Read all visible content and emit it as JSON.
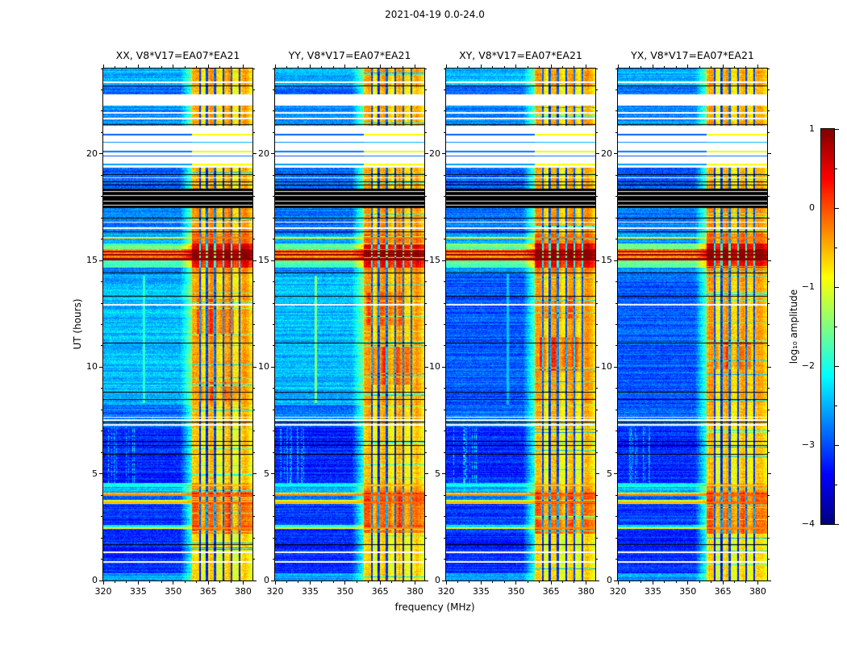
{
  "figure": {
    "title": "2021-04-19 0.0-24.0",
    "xlabel": "frequency (MHz)",
    "ylabel": "UT (hours)"
  },
  "chart_data": {
    "type": "heatmap",
    "title": "2021-04-19 0.0-24.0",
    "xlabel": "frequency (MHz)",
    "ylabel": "UT (hours)",
    "x_range_mhz": [
      320,
      384
    ],
    "y_range_hours": [
      0,
      24
    ],
    "x_ticks": [
      320,
      335,
      350,
      365,
      380
    ],
    "x_minor_step_mhz": 5,
    "y_ticks": [
      0,
      5,
      10,
      15,
      20
    ],
    "y_minor_step_hours": 1,
    "colorbar": {
      "label": "log₁₀ amplitude",
      "min": -4,
      "max": 1,
      "ticks": [
        1,
        0,
        -1,
        -2,
        -3,
        -4
      ],
      "minor_step": 0.5,
      "colormap": "jet"
    },
    "panels": [
      {
        "title": "XX, V8*V17=EA07*EA21",
        "pol": "XX",
        "seed": 101,
        "patches": [
          {
            "t0": 8.4,
            "t1": 9.3,
            "f0": 361,
            "f1": 378,
            "dv": 0.45
          },
          {
            "t0": 11.5,
            "t1": 13.2,
            "f0": 360,
            "f1": 376,
            "dv": 0.5
          },
          {
            "t0": 2.2,
            "t1": 4.2,
            "f0": 358,
            "f1": 384,
            "dv": 0.35
          }
        ],
        "vlines": [
          {
            "f": 337.5,
            "t0": 8.3,
            "t1": 14.3,
            "level": -1.9
          }
        ]
      },
      {
        "title": "YY, V8*V17=EA07*EA21",
        "pol": "YY",
        "seed": 202,
        "patches": [
          {
            "t0": 9.2,
            "t1": 11.0,
            "f0": 361,
            "f1": 379,
            "dv": 0.55
          },
          {
            "t0": 12.0,
            "t1": 13.5,
            "f0": 359,
            "f1": 375,
            "dv": 0.45
          },
          {
            "t0": 2.2,
            "t1": 4.2,
            "f0": 358,
            "f1": 384,
            "dv": 0.3
          }
        ],
        "vlines": [
          {
            "f": 337.5,
            "t0": 8.3,
            "t1": 14.3,
            "level": -1.5
          }
        ]
      },
      {
        "title": "XY, V8*V17=EA07*EA21",
        "pol": "XY",
        "seed": 303,
        "patches": [
          {
            "t0": 9.8,
            "t1": 11.4,
            "f0": 360,
            "f1": 378,
            "dv": 0.65
          },
          {
            "t0": 12.3,
            "t1": 13.3,
            "f0": 362,
            "f1": 377,
            "dv": 0.45
          },
          {
            "t0": 2.2,
            "t1": 4.2,
            "f0": 358,
            "f1": 384,
            "dv": 0.3
          }
        ],
        "vlines": [
          {
            "f": 346.5,
            "t0": 8.25,
            "t1": 14.35,
            "level": -2.4
          }
        ]
      },
      {
        "title": "YX, V8*V17=EA07*EA21",
        "pol": "YX",
        "seed": 404,
        "patches": [
          {
            "t0": 9.9,
            "t1": 11.2,
            "f0": 361,
            "f1": 377,
            "dv": 0.5
          },
          {
            "t0": 2.2,
            "t1": 4.2,
            "f0": 358,
            "f1": 384,
            "dv": 0.3
          }
        ],
        "vlines": []
      }
    ],
    "rfi_band_mhz": [
      358,
      384
    ],
    "rfi_dark_columns_mhz": [
      361.5,
      364.5,
      368,
      371.5,
      375,
      378.5
    ],
    "time_segments": [
      {
        "t0": 0.0,
        "t1": 0.35,
        "bg": -2.55,
        "rfi": -0.8
      },
      {
        "t0": 0.35,
        "t1": 2.2,
        "bg": -3.2,
        "rfi": -0.85
      },
      {
        "t0": 2.2,
        "t1": 2.45,
        "bg": -3.1,
        "rfi": -0.4
      },
      {
        "t0": 2.45,
        "t1": 2.6,
        "bg": -2.1,
        "rfi": -0.3
      },
      {
        "t0": 2.6,
        "t1": 3.6,
        "bg": -3.1,
        "rfi": -0.45
      },
      {
        "t0": 3.6,
        "t1": 3.78,
        "bg": -1.1,
        "rfi": -0.2
      },
      {
        "t0": 3.78,
        "t1": 3.95,
        "bg": -2.9,
        "rfi": -0.35
      },
      {
        "t0": 3.95,
        "t1": 4.12,
        "bg": -0.65,
        "rfi": -0.1
      },
      {
        "t0": 4.12,
        "t1": 4.4,
        "bg": -2.5,
        "rfi": -0.5
      },
      {
        "t0": 4.4,
        "t1": 4.58,
        "bg": -2.2,
        "rfi": -0.5
      },
      {
        "t0": 4.58,
        "t1": 7.2,
        "bg": -3.2,
        "rfi": -0.75,
        "streaks": true
      },
      {
        "t0": 7.2,
        "t1": 8.25,
        "bg": -2.85,
        "rfi": -0.65
      },
      {
        "t0": 8.25,
        "t1": 14.35,
        "bg": -2.45,
        "bgc": -2.95,
        "rfi": -0.55
      },
      {
        "t0": 14.35,
        "t1": 14.65,
        "bg": -2.7,
        "rfi": -0.4
      },
      {
        "t0": 14.65,
        "t1": 15.0,
        "bg": -1.75,
        "rfi": 0.3
      },
      {
        "t0": 15.0,
        "t1": 15.55,
        "bg": -0.35,
        "rfi": 0.85
      },
      {
        "t0": 15.55,
        "t1": 15.8,
        "bg": -1.6,
        "rfi": 0.45
      },
      {
        "t0": 15.8,
        "t1": 16.25,
        "bg": -2.6,
        "rfi": -0.25
      },
      {
        "t0": 16.25,
        "t1": 17.45,
        "bg": -2.8,
        "rfi": -0.5
      },
      {
        "t0": 17.45,
        "t1": 18.35,
        "bg": "black",
        "rfi": "black"
      },
      {
        "t0": 18.35,
        "t1": 19.35,
        "bg": -2.9,
        "rfi": -0.6
      },
      {
        "t0": 19.35,
        "t1": 21.3,
        "bg": "white",
        "rfi": "white"
      },
      {
        "t0": 21.3,
        "t1": 22.25,
        "bg": -2.7,
        "rfi": -0.6
      },
      {
        "t0": 22.25,
        "t1": 22.8,
        "bg": "white",
        "rfi": "white"
      },
      {
        "t0": 22.8,
        "t1": 23.15,
        "bg": -2.85,
        "rfi": -0.7
      },
      {
        "t0": 23.15,
        "t1": 24.01,
        "bg": -2.5,
        "rfi": -0.55
      }
    ],
    "overlay_lines": [
      {
        "t": 0.92,
        "kind": "white",
        "px": 2
      },
      {
        "t": 1.35,
        "kind": "white",
        "px": 2
      },
      {
        "t": 1.7,
        "kind": "black",
        "px": 1
      },
      {
        "t": 2.5,
        "kind": "value",
        "level": -1.0,
        "rfi": -0.3,
        "px": 2
      },
      {
        "t": 3.7,
        "kind": "value",
        "level": -0.5,
        "rfi": -0.15,
        "px": 2
      },
      {
        "t": 4.03,
        "kind": "value",
        "level": -0.3,
        "rfi": -0.1,
        "px": 2
      },
      {
        "t": 4.5,
        "kind": "value",
        "level": -2.1,
        "rfi": -0.6,
        "px": 2
      },
      {
        "t": 5.95,
        "kind": "black",
        "px": 1
      },
      {
        "t": 6.35,
        "kind": "black",
        "px": 1
      },
      {
        "t": 6.55,
        "kind": "black",
        "px": 1
      },
      {
        "t": 7.32,
        "kind": "white",
        "px": 2
      },
      {
        "t": 7.45,
        "kind": "black",
        "px": 1
      },
      {
        "t": 7.55,
        "kind": "white",
        "px": 2
      },
      {
        "t": 7.68,
        "kind": "white",
        "px": 1
      },
      {
        "t": 8.5,
        "kind": "black",
        "px": 1
      },
      {
        "t": 8.85,
        "kind": "black",
        "px": 1
      },
      {
        "t": 11.15,
        "kind": "black",
        "px": 1
      },
      {
        "t": 12.95,
        "kind": "white",
        "px": 2
      },
      {
        "t": 13.35,
        "kind": "black",
        "px": 1
      },
      {
        "t": 14.45,
        "kind": "black",
        "px": 1
      },
      {
        "t": 15.12,
        "kind": "value",
        "level": 0.85,
        "rfi": 0.95,
        "px": 3
      },
      {
        "t": 15.3,
        "kind": "value",
        "level": 0.9,
        "rfi": 0.95,
        "px": 2
      },
      {
        "t": 15.45,
        "kind": "value",
        "level": 0.7,
        "rfi": 0.9,
        "px": 2
      },
      {
        "t": 16.1,
        "kind": "value",
        "level": -0.8,
        "rfi": -0.2,
        "px": 2
      },
      {
        "t": 16.35,
        "kind": "black",
        "px": 1
      },
      {
        "t": 16.55,
        "kind": "white",
        "px": 2
      },
      {
        "t": 16.8,
        "kind": "white",
        "px": 1
      },
      {
        "t": 17.0,
        "kind": "black",
        "px": 1
      },
      {
        "t": 17.6,
        "kind": "white",
        "px": 1
      },
      {
        "t": 17.8,
        "kind": "white",
        "px": 1
      },
      {
        "t": 18.05,
        "kind": "white",
        "px": 1
      },
      {
        "t": 18.25,
        "kind": "white",
        "px": 1
      },
      {
        "t": 18.55,
        "kind": "black",
        "px": 1
      },
      {
        "t": 18.7,
        "kind": "black",
        "px": 1
      },
      {
        "t": 18.9,
        "kind": "white",
        "px": 1
      },
      {
        "t": 19.05,
        "kind": "black",
        "px": 1
      },
      {
        "t": 19.55,
        "kind": "value",
        "level": -2.6,
        "rfi": -0.9,
        "px": 2
      },
      {
        "t": 19.9,
        "kind": "value",
        "level": -3.0,
        "rfi": -2.8,
        "px": 1
      },
      {
        "t": 20.15,
        "kind": "value",
        "level": -2.8,
        "rfi": -1.0,
        "px": 2
      },
      {
        "t": 20.55,
        "kind": "value",
        "level": -2.7,
        "rfi": -2.5,
        "px": 1
      },
      {
        "t": 20.95,
        "kind": "value",
        "level": -2.9,
        "rfi": -0.9,
        "px": 2
      },
      {
        "t": 21.4,
        "kind": "black",
        "px": 1
      },
      {
        "t": 21.7,
        "kind": "white",
        "px": 2
      },
      {
        "t": 21.95,
        "kind": "white",
        "px": 2
      },
      {
        "t": 23.2,
        "kind": "black",
        "px": 1
      },
      {
        "t": 23.38,
        "kind": "white",
        "px": 2
      }
    ]
  }
}
